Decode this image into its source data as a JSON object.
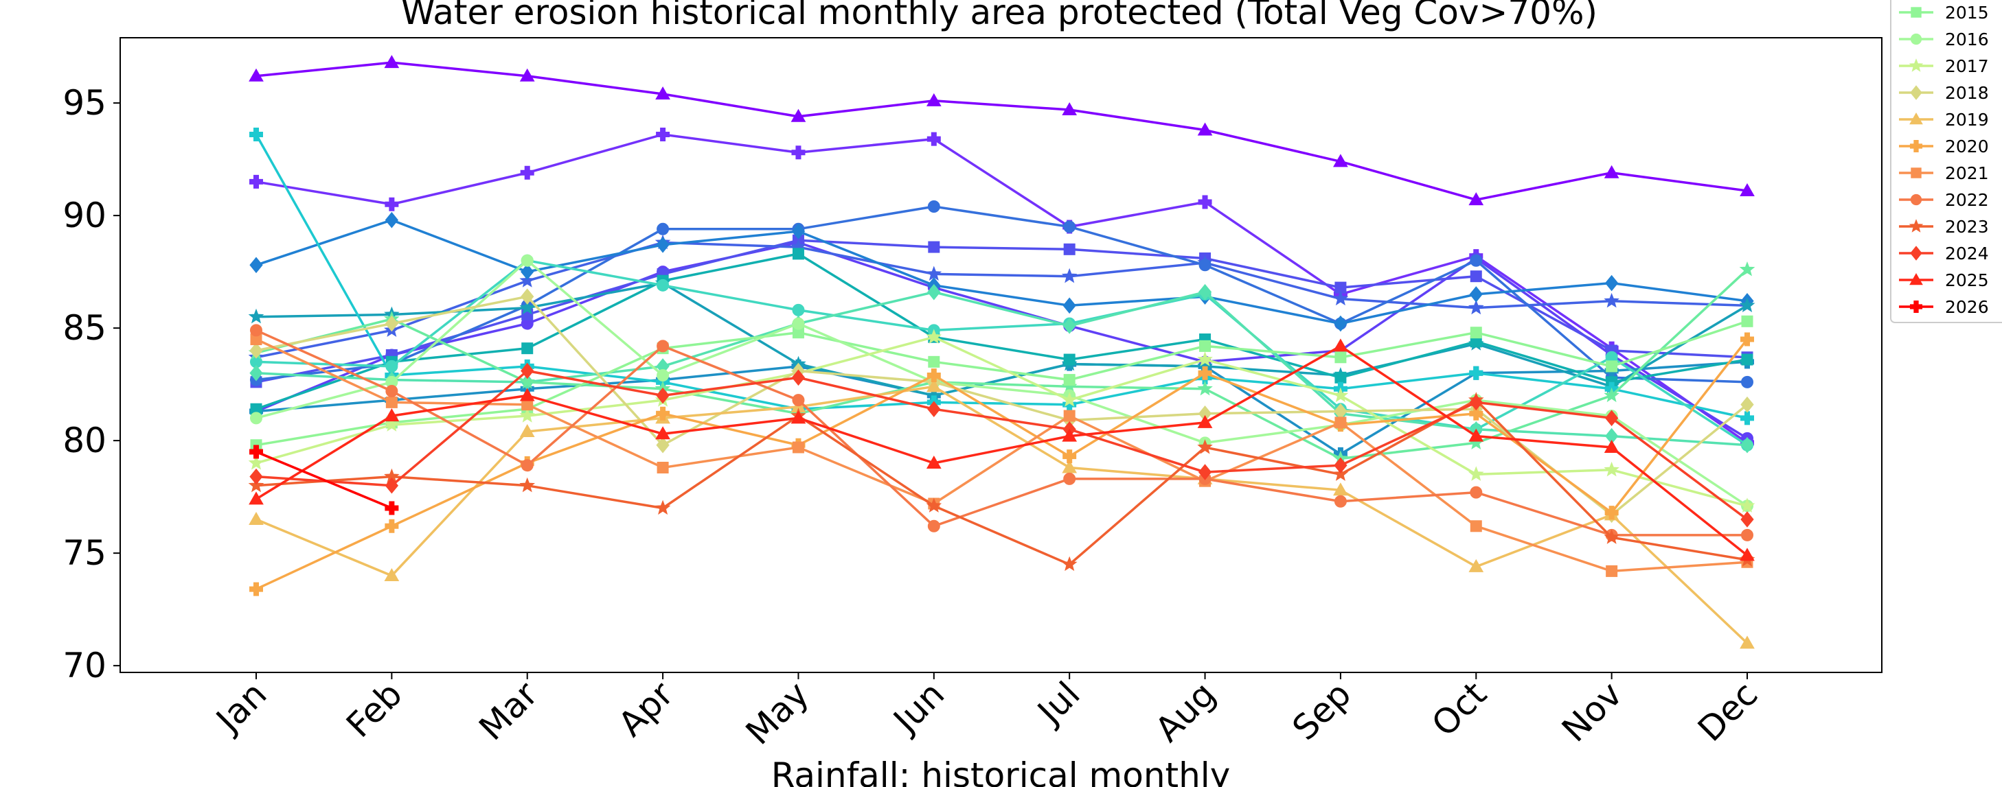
{
  "chart_data": {
    "type": "line",
    "title": "Water erosion historical monthly area protected (Total Veg Cov>70%)",
    "xlabel": "Rainfall: historical monthly",
    "ylabel": "",
    "categories": [
      "Jan",
      "Feb",
      "Mar",
      "Apr",
      "May",
      "Jun",
      "Jul",
      "Aug",
      "Sep",
      "Oct",
      "Nov",
      "Dec"
    ],
    "yticks": [
      70,
      75,
      80,
      85,
      90,
      95
    ],
    "ylim": [
      69.7,
      97.9
    ],
    "grid": false,
    "legend_position": "outside-right",
    "series": [
      {
        "name": "",
        "color": "#8000ff",
        "marker": "triangle",
        "values": [
          96.2,
          96.8,
          96.2,
          95.4,
          94.4,
          95.1,
          94.7,
          93.8,
          92.4,
          90.7,
          91.9,
          91.1
        ]
      },
      {
        "name": "",
        "color": "#7331fb",
        "marker": "plus",
        "values": [
          91.5,
          90.5,
          91.9,
          93.6,
          92.8,
          93.4,
          89.5,
          90.6,
          86.5,
          88.2,
          84.1,
          79.9
        ]
      },
      {
        "name": "",
        "color": "#6040f6",
        "marker": "circle",
        "values": [
          81.3,
          83.8,
          85.2,
          87.5,
          88.8,
          86.8,
          85.1,
          83.5,
          84.0,
          88.1,
          83.8,
          80.1
        ]
      },
      {
        "name": "",
        "color": "#5350ee",
        "marker": "square",
        "values": [
          82.6,
          83.8,
          85.6,
          87.4,
          88.9,
          88.6,
          88.5,
          88.1,
          86.8,
          87.3,
          84.0,
          83.7
        ]
      },
      {
        "name": "",
        "color": "#4262e5",
        "marker": "star",
        "values": [
          83.7,
          84.9,
          87.1,
          88.8,
          88.6,
          87.4,
          87.3,
          87.9,
          86.3,
          85.9,
          86.2,
          86.0
        ]
      },
      {
        "name": "",
        "color": "#3570dc",
        "marker": "circle",
        "values": [
          82.7,
          83.4,
          86.0,
          89.4,
          89.4,
          90.4,
          89.5,
          87.8,
          85.2,
          88.0,
          82.8,
          82.6
        ]
      },
      {
        "name": "",
        "color": "#2080d3",
        "marker": "diamond",
        "values": [
          87.8,
          89.8,
          87.5,
          88.7,
          89.3,
          86.9,
          86.0,
          86.4,
          85.2,
          86.5,
          87.0,
          86.2
        ]
      },
      {
        "name": "",
        "color": "#1e90c5",
        "marker": "plus",
        "values": [
          81.3,
          81.8,
          82.3,
          82.7,
          83.3,
          82.0,
          83.4,
          83.3,
          79.4,
          83.0,
          83.1,
          83.5
        ]
      },
      {
        "name": "",
        "color": "#18a0b8",
        "marker": "star",
        "values": [
          85.5,
          85.6,
          85.9,
          87.0,
          83.4,
          82.0,
          83.4,
          83.3,
          82.9,
          84.3,
          82.4,
          86.0
        ]
      },
      {
        "name": "",
        "color": "#10b0b0",
        "marker": "square",
        "values": [
          81.4,
          83.5,
          84.1,
          87.1,
          88.3,
          84.6,
          83.6,
          84.5,
          82.8,
          84.4,
          82.6,
          83.6
        ]
      },
      {
        "name": "",
        "color": "#1dc9d0",
        "marker": "plus",
        "values": [
          93.6,
          82.9,
          83.3,
          82.6,
          81.4,
          81.7,
          81.6,
          82.8,
          82.3,
          83.0,
          82.3,
          81.0
        ]
      },
      {
        "name": "",
        "color": "#40d8c0",
        "marker": "circle",
        "values": [
          83.5,
          83.3,
          88.0,
          86.9,
          85.8,
          84.9,
          85.2,
          86.5,
          81.4,
          80.5,
          83.7,
          79.8
        ]
      },
      {
        "name": "",
        "color": "#55e2b0",
        "marker": "diamond",
        "values": [
          83.0,
          82.7,
          82.6,
          83.3,
          85.2,
          86.6,
          85.1,
          86.6,
          81.2,
          80.5,
          80.2,
          79.8
        ]
      },
      {
        "name": "",
        "color": "#6aeba0",
        "marker": "star",
        "values": [
          83.9,
          85.4,
          82.6,
          82.3,
          81.2,
          82.6,
          82.4,
          82.3,
          79.2,
          79.9,
          82.0,
          87.6
        ]
      },
      {
        "name": "2015",
        "color": "#90f596",
        "marker": "square",
        "values": [
          79.8,
          80.8,
          81.4,
          84.1,
          84.8,
          83.5,
          82.7,
          84.2,
          83.7,
          84.8,
          83.3,
          85.3
        ]
      },
      {
        "name": "2016",
        "color": "#a4f89a",
        "marker": "circle",
        "values": [
          81.0,
          82.6,
          88.0,
          82.9,
          85.2,
          82.6,
          82.0,
          79.9,
          80.7,
          81.8,
          81.1,
          77.1
        ]
      },
      {
        "name": "2017",
        "color": "#c8f38a",
        "marker": "star",
        "values": [
          79.0,
          80.7,
          81.1,
          81.8,
          83.0,
          84.6,
          81.8,
          83.6,
          82.0,
          78.5,
          78.7,
          77.1
        ]
      },
      {
        "name": "2018",
        "color": "#d8d880",
        "marker": "diamond",
        "values": [
          84.0,
          85.2,
          86.4,
          79.8,
          83.1,
          82.6,
          80.9,
          81.2,
          81.3,
          81.4,
          76.7,
          81.6
        ]
      },
      {
        "name": "2019",
        "color": "#f0c060",
        "marker": "triangle",
        "values": [
          76.5,
          74.0,
          80.4,
          81.0,
          81.5,
          82.4,
          78.8,
          78.3,
          77.8,
          74.4,
          76.7,
          71.0
        ]
      },
      {
        "name": "2020",
        "color": "#f8a848",
        "marker": "plus",
        "values": [
          73.4,
          76.2,
          79.0,
          81.2,
          79.8,
          82.9,
          79.3,
          83.0,
          80.7,
          81.2,
          76.8,
          84.5
        ]
      },
      {
        "name": "2021",
        "color": "#f89050",
        "marker": "square",
        "values": [
          84.5,
          81.7,
          81.6,
          78.8,
          79.7,
          77.2,
          81.1,
          78.2,
          80.8,
          76.2,
          74.2,
          74.6
        ]
      },
      {
        "name": "2022",
        "color": "#f57848",
        "marker": "circle",
        "values": [
          84.9,
          82.2,
          78.9,
          84.2,
          81.8,
          76.2,
          78.3,
          78.3,
          77.3,
          77.7,
          75.8,
          75.8
        ]
      },
      {
        "name": "2023",
        "color": "#f06030",
        "marker": "star",
        "values": [
          78.0,
          78.4,
          78.0,
          77.0,
          81.1,
          77.1,
          74.5,
          79.7,
          78.5,
          81.8,
          75.7,
          74.7
        ]
      },
      {
        "name": "2024",
        "color": "#f84028",
        "marker": "diamond",
        "values": [
          78.4,
          78.0,
          83.1,
          82.0,
          82.8,
          81.4,
          80.5,
          78.6,
          78.9,
          81.7,
          81.0,
          76.5
        ]
      },
      {
        "name": "2025",
        "color": "#ff2818",
        "marker": "triangle",
        "values": [
          77.4,
          81.1,
          82.0,
          80.3,
          81.0,
          79.0,
          80.2,
          80.8,
          84.2,
          80.2,
          79.7,
          74.9
        ]
      },
      {
        "name": "2026",
        "color": "#ff0000",
        "marker": "plus",
        "values": [
          79.5,
          77.0,
          null,
          null,
          null,
          null,
          null,
          null,
          null,
          null,
          null,
          null
        ]
      }
    ]
  }
}
